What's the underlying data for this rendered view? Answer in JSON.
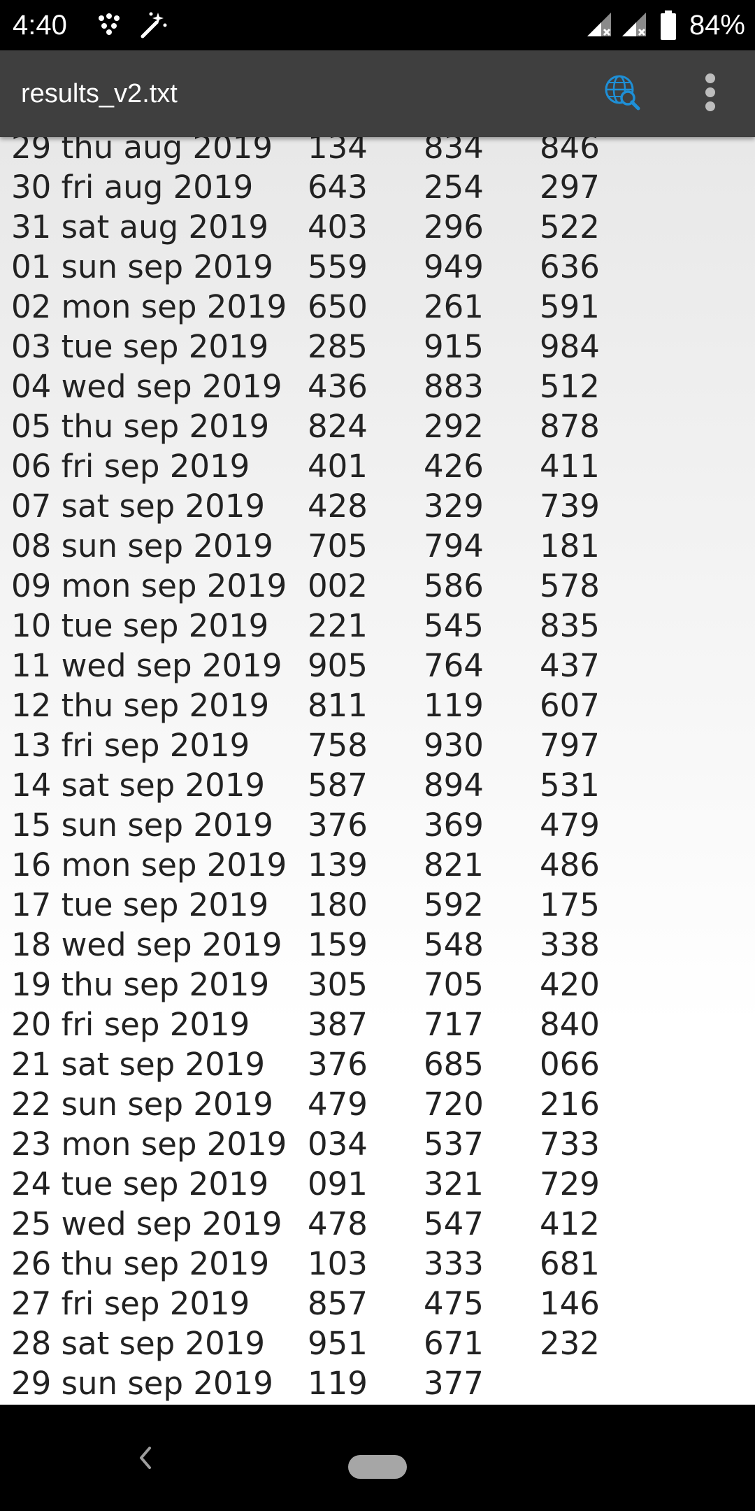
{
  "status_bar": {
    "time": "4:40",
    "battery_percent": "84%",
    "icons": [
      "dots-grid-icon",
      "magic-wand-icon",
      "signal-no-service-icon",
      "signal-no-service-icon",
      "battery-icon"
    ]
  },
  "app_bar": {
    "title": "results_v2.txt",
    "actions": [
      "globe-search-icon",
      "overflow-menu-icon"
    ],
    "accent_color": "#1e8fd6"
  },
  "lines": [
    {
      "date": "29 thu aug 2019",
      "a": "134",
      "b": "834",
      "c": "846"
    },
    {
      "date": "30 fri aug 2019",
      "a": "643",
      "b": "254",
      "c": "297"
    },
    {
      "date": "31 sat aug 2019",
      "a": "403",
      "b": "296",
      "c": "522"
    },
    {
      "date": "01 sun sep 2019",
      "a": "559",
      "b": "949",
      "c": "636"
    },
    {
      "date": "02 mon sep 2019",
      "a": "650",
      "b": "261",
      "c": "591"
    },
    {
      "date": "03 tue sep 2019",
      "a": "285",
      "b": "915",
      "c": "984"
    },
    {
      "date": "04 wed sep 2019",
      "a": "436",
      "b": "883",
      "c": "512"
    },
    {
      "date": "05 thu sep 2019",
      "a": "824",
      "b": "292",
      "c": "878"
    },
    {
      "date": "06 fri sep 2019",
      "a": "401",
      "b": "426",
      "c": "411"
    },
    {
      "date": "07 sat sep 2019",
      "a": "428",
      "b": "329",
      "c": "739"
    },
    {
      "date": "08 sun sep 2019",
      "a": "705",
      "b": "794",
      "c": "181"
    },
    {
      "date": "09 mon sep 2019",
      "a": "002",
      "b": "586",
      "c": "578"
    },
    {
      "date": "10 tue sep 2019",
      "a": "221",
      "b": "545",
      "c": "835"
    },
    {
      "date": "11 wed sep 2019",
      "a": "905",
      "b": "764",
      "c": "437"
    },
    {
      "date": "12 thu sep 2019",
      "a": "811",
      "b": "119",
      "c": "607"
    },
    {
      "date": "13 fri sep 2019",
      "a": "758",
      "b": "930",
      "c": "797"
    },
    {
      "date": "14 sat sep 2019",
      "a": "587",
      "b": "894",
      "c": "531"
    },
    {
      "date": "15 sun sep 2019",
      "a": "376",
      "b": "369",
      "c": "479"
    },
    {
      "date": "16 mon sep 2019",
      "a": "139",
      "b": "821",
      "c": "486"
    },
    {
      "date": "17 tue sep 2019",
      "a": "180",
      "b": "592",
      "c": "175"
    },
    {
      "date": "18 wed sep 2019",
      "a": "159",
      "b": "548",
      "c": "338"
    },
    {
      "date": "19 thu sep 2019",
      "a": "305",
      "b": "705",
      "c": "420"
    },
    {
      "date": "20 fri sep 2019",
      "a": "387",
      "b": "717",
      "c": "840"
    },
    {
      "date": "21 sat sep 2019",
      "a": "376",
      "b": "685",
      "c": "066"
    },
    {
      "date": "22 sun sep 2019",
      "a": "479",
      "b": "720",
      "c": "216"
    },
    {
      "date": "23 mon sep 2019",
      "a": "034",
      "b": "537",
      "c": "733"
    },
    {
      "date": "24 tue sep 2019",
      "a": "091",
      "b": "321",
      "c": "729"
    },
    {
      "date": "25 wed sep 2019",
      "a": "478",
      "b": "547",
      "c": "412"
    },
    {
      "date": "26 thu sep 2019",
      "a": "103",
      "b": "333",
      "c": "681"
    },
    {
      "date": "27 fri sep 2019",
      "a": "857",
      "b": "475",
      "c": "146"
    },
    {
      "date": "28 sat sep 2019",
      "a": "951",
      "b": "671",
      "c": "232"
    },
    {
      "date": "29 sun sep 2019",
      "a": "119",
      "b": "377",
      "c": ""
    }
  ],
  "nav_bar": {
    "buttons": [
      "back-icon",
      "home-pill-icon"
    ]
  }
}
